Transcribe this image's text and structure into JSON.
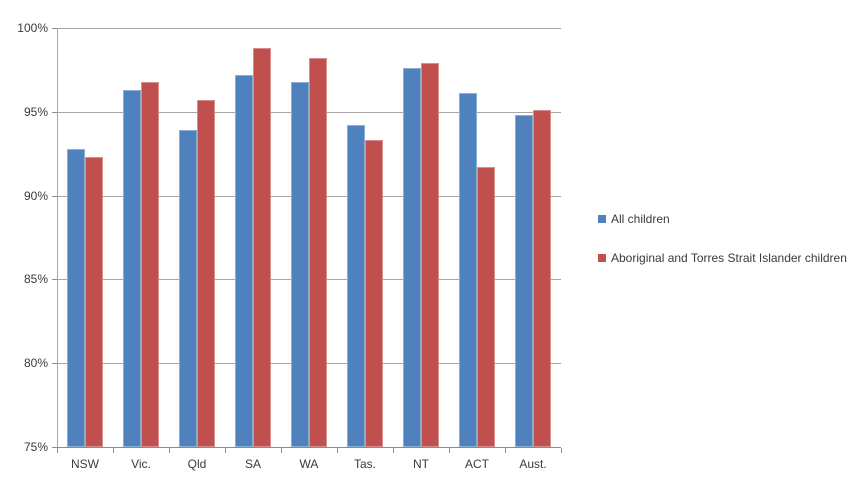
{
  "chart_data": {
    "type": "bar",
    "title": "",
    "xlabel": "",
    "ylabel": "",
    "categories": [
      "NSW",
      "Vic.",
      "Qld",
      "SA",
      "WA",
      "Tas.",
      "NT",
      "ACT",
      "Aust."
    ],
    "series": [
      {
        "name": "All children",
        "color": "#4F81BD",
        "values": [
          92.8,
          96.3,
          93.9,
          97.2,
          96.8,
          94.2,
          97.6,
          96.1,
          94.8
        ]
      },
      {
        "name": "Aboriginal and Torres Strait Islander children",
        "color": "#C0504D",
        "values": [
          92.3,
          96.8,
          95.7,
          98.8,
          98.2,
          93.3,
          97.9,
          91.7,
          95.1
        ]
      }
    ],
    "ylim": [
      75,
      100
    ],
    "ytick_step": 5,
    "ytick_labels": [
      "75%",
      "80%",
      "85%",
      "90%",
      "95%",
      "100%"
    ],
    "grid": true,
    "legend_position": "right"
  },
  "colors": {
    "gridline": "#a6a6a6",
    "axis": "#8c8c8c",
    "text": "#3b3b3b",
    "background": "#ffffff"
  }
}
